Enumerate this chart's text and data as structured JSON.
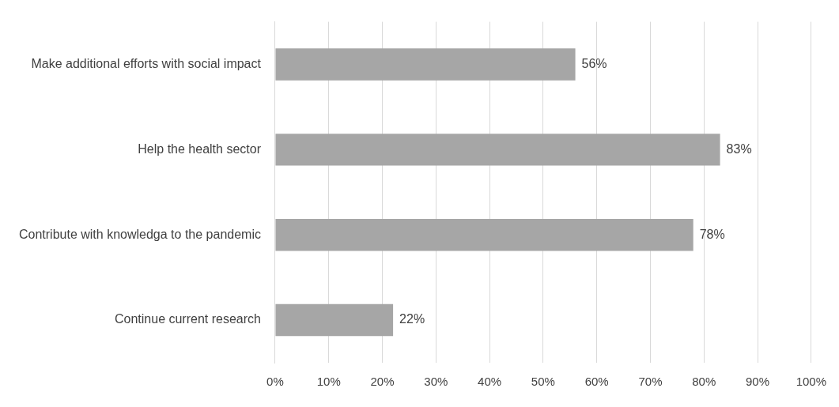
{
  "chart_data": {
    "type": "bar",
    "orientation": "horizontal",
    "categories": [
      "Make additional efforts with social impact",
      "Help the health sector",
      "Contribute with knowledga to the pandemic",
      "Continue current research"
    ],
    "values": [
      56,
      83,
      78,
      22
    ],
    "value_labels": [
      "56%",
      "83%",
      "78%",
      "22%"
    ],
    "color": "#a6a6a6",
    "xlim": [
      0,
      100
    ],
    "xticks": [
      {
        "value": 0,
        "label": "0%"
      },
      {
        "value": 10,
        "label": "10%"
      },
      {
        "value": 20,
        "label": "20%"
      },
      {
        "value": 30,
        "label": "30%"
      },
      {
        "value": 40,
        "label": "40%"
      },
      {
        "value": 50,
        "label": "50%"
      },
      {
        "value": 60,
        "label": "60%"
      },
      {
        "value": 70,
        "label": "70%"
      },
      {
        "value": 80,
        "label": "80%"
      },
      {
        "value": 90,
        "label": "90%"
      },
      {
        "value": 100,
        "label": "100%"
      }
    ],
    "grid": "x"
  }
}
